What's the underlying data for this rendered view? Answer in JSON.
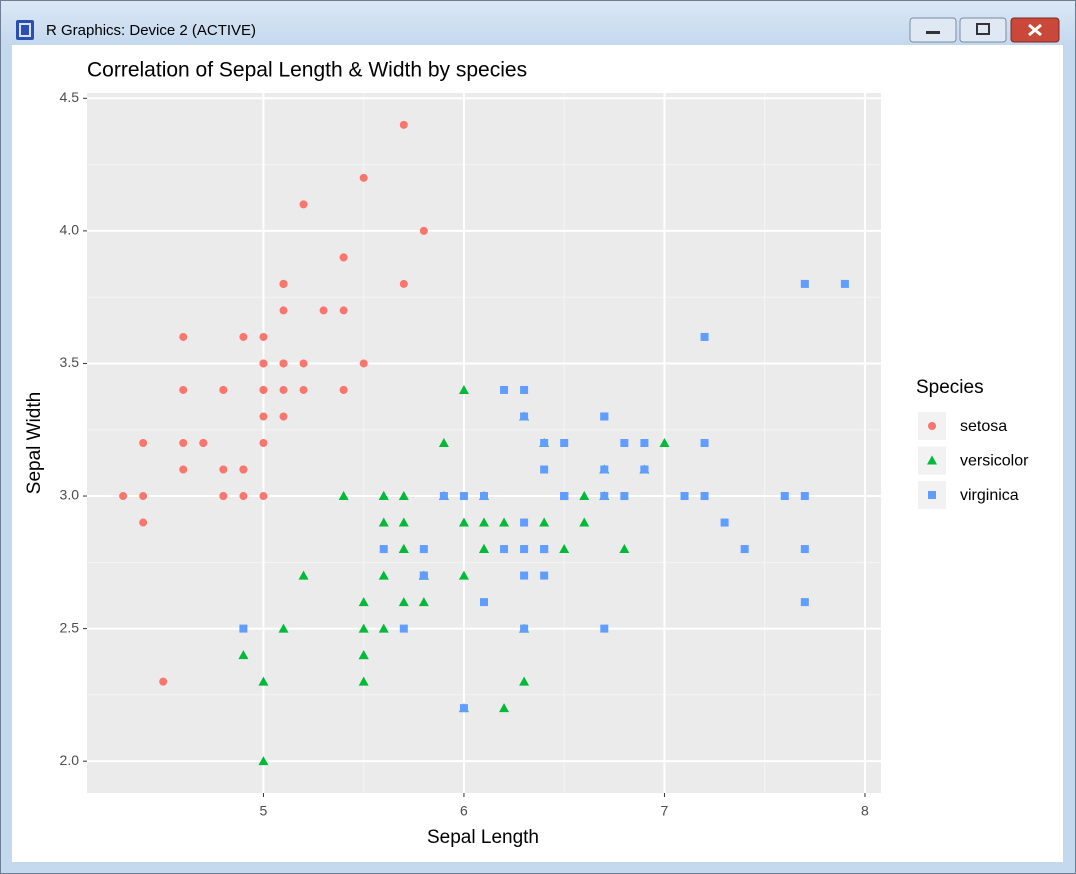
{
  "window": {
    "title": "R Graphics: Device 2 (ACTIVE)"
  },
  "chart_data": {
    "type": "scatter",
    "title": "Correlation of Sepal Length & Width by species",
    "x_label": "Sepal Length",
    "y_label": "Sepal Width",
    "legend_title": "Species",
    "legend": "right",
    "grid": true,
    "xlim": [
      4.12,
      8.08
    ],
    "ylim": [
      1.88,
      4.52
    ],
    "xticks": [
      5,
      6,
      7,
      8
    ],
    "yticks": [
      {
        "value": 2,
        "label": "2.0"
      },
      2.5,
      {
        "value": 3,
        "label": "3.0"
      },
      3.5,
      {
        "value": 4,
        "label": "4.0"
      },
      4.5
    ],
    "series": [
      {
        "name": "setosa",
        "color": "#F8766D",
        "shape": "circle",
        "x": [
          5.1,
          4.9,
          4.7,
          4.6,
          5.0,
          5.4,
          4.6,
          5.0,
          4.4,
          4.9,
          5.4,
          4.8,
          4.8,
          4.3,
          5.8,
          5.7,
          5.4,
          5.1,
          5.7,
          5.1,
          5.4,
          5.1,
          4.6,
          5.1,
          4.8,
          5.0,
          5.0,
          5.2,
          5.2,
          4.7,
          4.8,
          5.4,
          5.2,
          5.5,
          4.9,
          5.0,
          5.5,
          4.9,
          4.4,
          5.1,
          5.0,
          4.5,
          4.4,
          5.0,
          5.1,
          4.8,
          5.1,
          4.6,
          5.3,
          5.0
        ],
        "values": [
          3.5,
          3.0,
          3.2,
          3.1,
          3.6,
          3.9,
          3.4,
          3.4,
          2.9,
          3.1,
          3.7,
          3.4,
          3.0,
          3.0,
          4.0,
          4.4,
          3.9,
          3.5,
          3.8,
          3.8,
          3.4,
          3.7,
          3.6,
          3.3,
          3.4,
          3.0,
          3.4,
          3.5,
          3.4,
          3.2,
          3.1,
          3.4,
          4.1,
          4.2,
          3.1,
          3.2,
          3.5,
          3.6,
          3.0,
          3.4,
          3.5,
          2.3,
          3.2,
          3.5,
          3.8,
          3.0,
          3.8,
          3.2,
          3.7,
          3.3
        ]
      },
      {
        "name": "versicolor",
        "color": "#00BA38",
        "shape": "triangle",
        "x": [
          7.0,
          6.4,
          6.9,
          5.5,
          6.5,
          5.7,
          6.3,
          4.9,
          6.6,
          5.2,
          5.0,
          5.9,
          6.0,
          6.1,
          5.6,
          6.7,
          5.6,
          5.8,
          6.2,
          5.6,
          5.9,
          6.1,
          6.3,
          6.1,
          6.4,
          6.6,
          6.8,
          6.7,
          6.0,
          5.7,
          5.5,
          5.5,
          5.8,
          6.0,
          5.4,
          6.0,
          6.7,
          6.3,
          5.6,
          5.5,
          5.5,
          6.1,
          5.8,
          5.0,
          5.6,
          5.7,
          5.7,
          6.2,
          5.1,
          5.7
        ],
        "values": [
          3.2,
          3.2,
          3.1,
          2.3,
          2.8,
          2.8,
          3.3,
          2.4,
          2.9,
          2.7,
          2.0,
          3.0,
          2.2,
          2.9,
          2.9,
          3.1,
          3.0,
          2.7,
          2.2,
          2.5,
          3.2,
          2.8,
          2.5,
          2.8,
          2.9,
          3.0,
          2.8,
          3.0,
          2.9,
          2.6,
          2.4,
          2.4,
          2.7,
          2.7,
          3.0,
          3.4,
          3.1,
          2.3,
          3.0,
          2.5,
          2.6,
          3.0,
          2.6,
          2.3,
          2.7,
          3.0,
          2.9,
          2.9,
          2.5,
          2.8
        ]
      },
      {
        "name": "virginica",
        "color": "#619CFF",
        "shape": "square",
        "x": [
          6.3,
          5.8,
          7.1,
          6.3,
          6.5,
          7.6,
          4.9,
          7.3,
          6.7,
          7.2,
          6.5,
          6.4,
          6.8,
          5.7,
          5.8,
          6.4,
          6.5,
          7.7,
          7.7,
          6.0,
          6.9,
          5.6,
          7.7,
          6.3,
          6.7,
          7.2,
          6.2,
          6.1,
          6.4,
          7.2,
          7.4,
          7.9,
          6.4,
          6.3,
          6.1,
          7.7,
          6.3,
          6.4,
          6.0,
          6.9,
          6.7,
          6.9,
          5.8,
          6.8,
          6.7,
          6.7,
          6.3,
          6.5,
          6.2,
          5.9
        ],
        "values": [
          3.3,
          2.7,
          3.0,
          2.9,
          3.0,
          3.0,
          2.5,
          2.9,
          2.5,
          3.6,
          3.2,
          2.7,
          3.0,
          2.5,
          2.8,
          3.2,
          3.0,
          3.8,
          2.6,
          2.2,
          3.2,
          2.8,
          2.8,
          2.7,
          3.3,
          3.2,
          2.8,
          3.0,
          2.8,
          3.0,
          2.8,
          3.8,
          2.8,
          2.8,
          2.6,
          3.0,
          3.4,
          3.1,
          3.0,
          3.1,
          3.1,
          3.1,
          2.7,
          3.2,
          3.3,
          3.0,
          2.5,
          3.0,
          3.4,
          3.0
        ]
      }
    ]
  }
}
